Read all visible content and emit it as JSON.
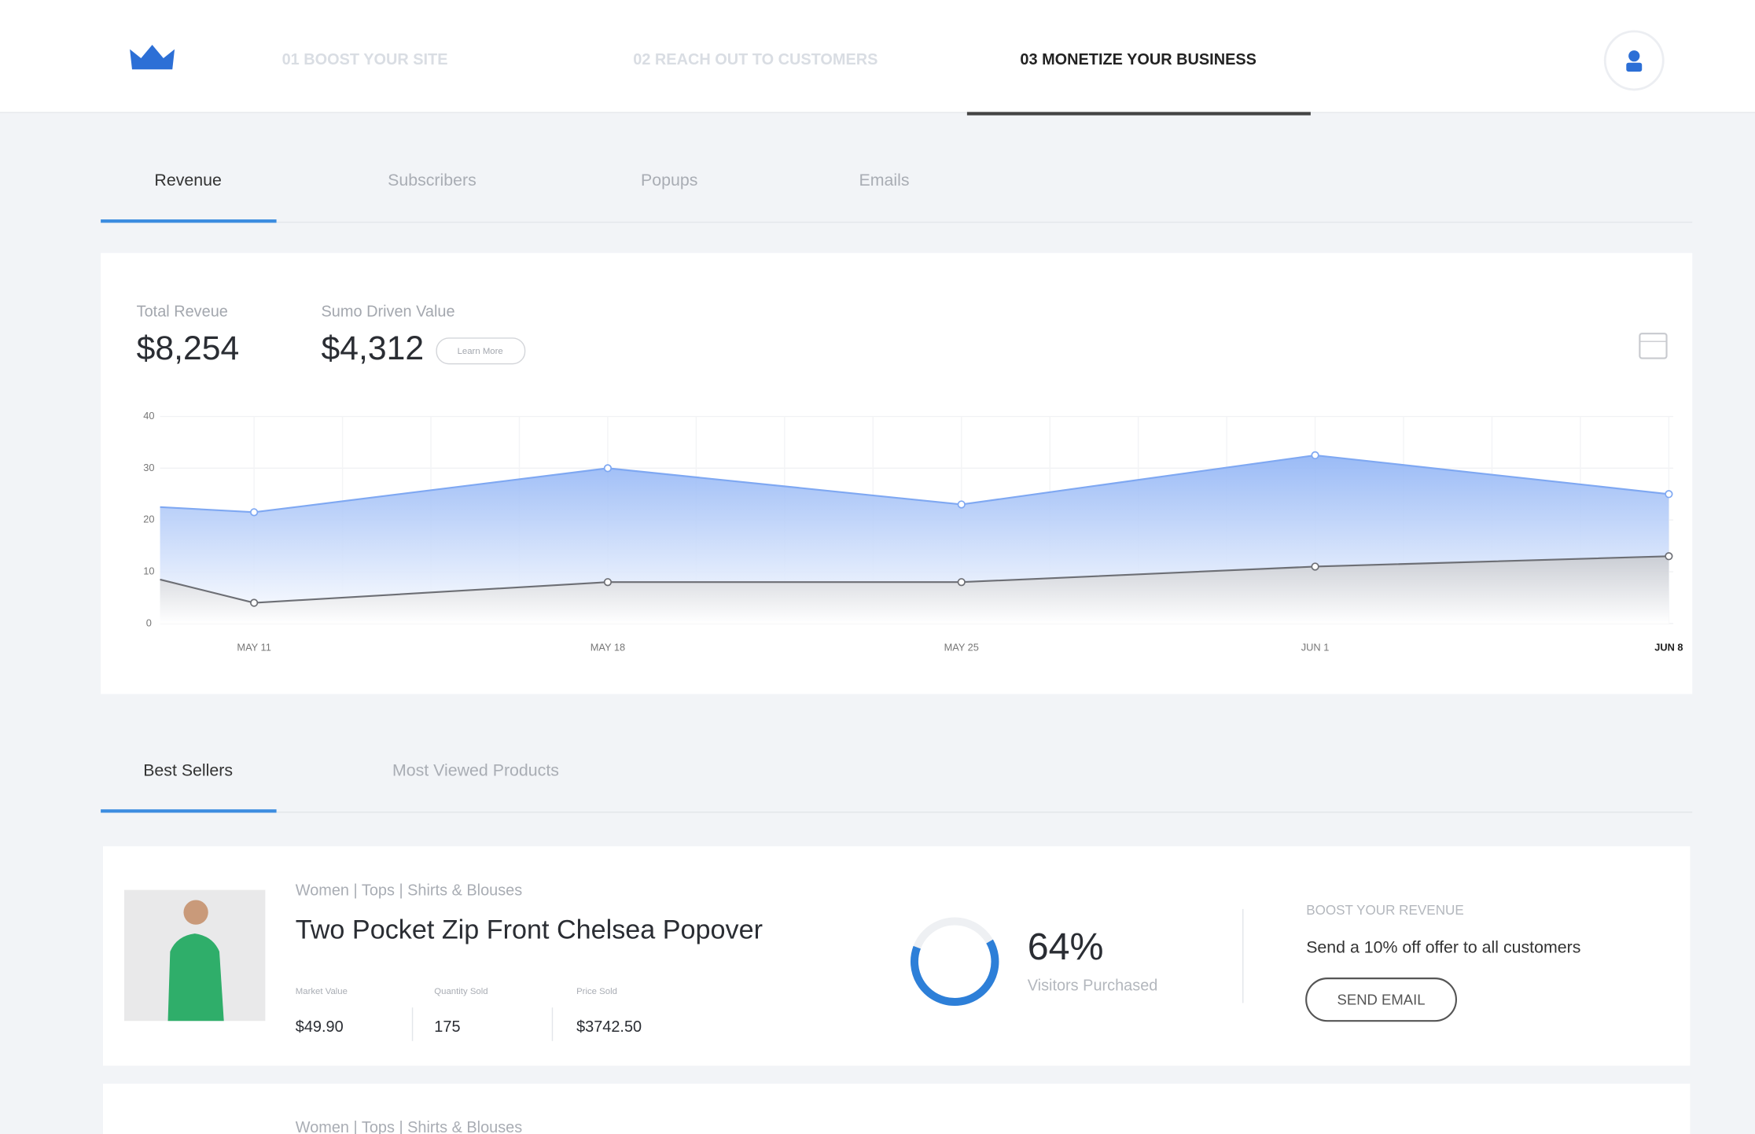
{
  "nav": {
    "items": [
      "01 BOOST YOUR SITE",
      "02 REACH OUT TO CUSTOMERS",
      "03 MONETIZE YOUR BUSINESS"
    ]
  },
  "tabs": [
    "Revenue",
    "Subscribers",
    "Popups",
    "Emails"
  ],
  "stats": {
    "total_label": "Total Reveue",
    "total_value": "$8,254",
    "sumo_label": "Sumo Driven Value",
    "sumo_value": "$4,312",
    "learn_more": "Learn More"
  },
  "chart_data": {
    "type": "area",
    "categories": [
      null,
      "MAY 11",
      "MAY 18",
      "MAY 25",
      "JUN 1",
      "JUN 8"
    ],
    "series": [
      {
        "color": "#7fa8f2",
        "values": [
          22.5,
          21.5,
          30,
          23,
          32.5,
          25
        ]
      },
      {
        "color": "#6d6f75",
        "values": [
          8.5,
          4,
          8,
          8,
          11,
          13
        ]
      }
    ],
    "ylim": [
      0,
      40
    ],
    "yticks": [
      0,
      10,
      20,
      30,
      40
    ],
    "grid": true
  },
  "product_tabs": [
    "Best Sellers",
    "Most Viewed Products"
  ],
  "products": [
    {
      "breadcrumb": "Women | Tops | Shirts & Blouses",
      "name": "Two Pocket Zip Front Chelsea Popover",
      "metrics": [
        {
          "label": "Market Value",
          "value": "$49.90"
        },
        {
          "label": "Quantity Sold",
          "value": "175"
        },
        {
          "label": "Price Sold",
          "value": "$3742.50"
        }
      ],
      "purchase_rate": {
        "value": 64,
        "label": "64%"
      },
      "purchase_label": "Visitors Purchased",
      "boost_title": "BOOST YOUR REVENUE",
      "boost_text": "Send a 10% off offer to all customers",
      "button": "SEND EMAIL"
    },
    {
      "breadcrumb": "Women | Tops | Shirts & Blouses"
    }
  ]
}
